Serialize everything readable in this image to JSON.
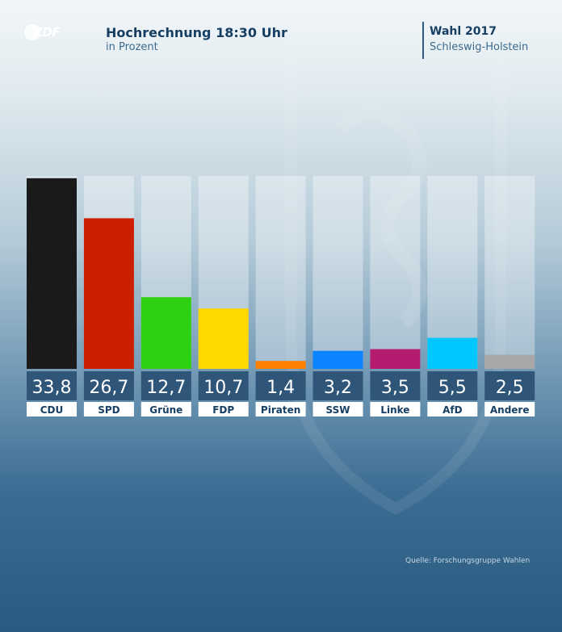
{
  "header": {
    "logo_text": "ZDF",
    "title": "Hochrechnung 18:30 Uhr",
    "subtitle": "in Prozent",
    "election": "Wahl 2017",
    "region": "Schleswig-Holstein"
  },
  "source": "Quelle: Forschungsgruppe Wahlen",
  "chart_data": {
    "type": "bar",
    "title": "Hochrechnung 18:30 Uhr",
    "subtitle": "in Prozent",
    "categories": [
      "CDU",
      "SPD",
      "Grüne",
      "FDP",
      "Piraten",
      "SSW",
      "Linke",
      "AfD",
      "Andere"
    ],
    "values": [
      33.8,
      26.7,
      12.7,
      10.7,
      1.4,
      3.2,
      3.5,
      5.5,
      2.5
    ],
    "value_labels": [
      "33,8",
      "26,7",
      "12,7",
      "10,7",
      "1,4",
      "3,2",
      "3,5",
      "5,5",
      "2,5"
    ],
    "colors": [
      "#1a1a1a",
      "#cc1f00",
      "#2ed012",
      "#ffd800",
      "#ff7f00",
      "#0a84ff",
      "#b51b6f",
      "#00c8ff",
      "#a8a8a8"
    ],
    "ylim": [
      0,
      34.2
    ],
    "grid": false,
    "legend": "none"
  }
}
